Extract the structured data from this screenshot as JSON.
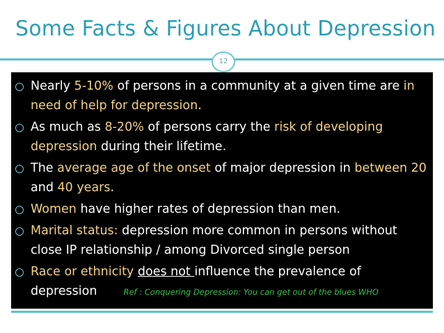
{
  "slide": {
    "title": "Some Facts & Figures About Depression",
    "number": "12"
  },
  "bullets": [
    {
      "segments": [
        {
          "text": "Nearly ",
          "style": "normal"
        },
        {
          "text": "5-10%",
          "style": "highlight"
        },
        {
          "text": " of persons in a community at a given time are ",
          "style": "normal"
        },
        {
          "text": "in need of help for depression",
          "style": "highlight"
        },
        {
          "text": ".",
          "style": "normal"
        }
      ]
    },
    {
      "segments": [
        {
          "text": "As much as ",
          "style": "normal"
        },
        {
          "text": "8-20%",
          "style": "highlight"
        },
        {
          "text": " of persons carry the ",
          "style": "normal"
        },
        {
          "text": "risk of developing depression",
          "style": "highlight"
        },
        {
          "text": " during their lifetime.",
          "style": "normal"
        }
      ]
    },
    {
      "segments": [
        {
          "text": "The ",
          "style": "normal"
        },
        {
          "text": "average age of the onset",
          "style": "highlight"
        },
        {
          "text": " of major depression in ",
          "style": "normal"
        },
        {
          "text": "between 20",
          "style": "highlight"
        },
        {
          "text": " and ",
          "style": "normal"
        },
        {
          "text": "40 years",
          "style": "highlight"
        },
        {
          "text": ".",
          "style": "normal"
        }
      ]
    },
    {
      "segments": [
        {
          "text": "Women",
          "style": "highlight"
        },
        {
          "text": " have higher rates of depression than men.",
          "style": "normal"
        }
      ]
    },
    {
      "segments": [
        {
          "text": "Marital status:",
          "style": "highlight"
        },
        {
          "text": " depression more common in persons without close IP relationship / among Divorced single person",
          "style": "normal"
        }
      ]
    },
    {
      "segments": [
        {
          "text": "Race or ethnicity",
          "style": "highlight"
        },
        {
          "text": " ",
          "style": "normal"
        },
        {
          "text": "does not ",
          "style": "underline"
        },
        {
          "text": "influence the prevalence of depression",
          "style": "normal"
        }
      ],
      "reference": "Ref : Conquering Depression: You can get out of the blues WHO"
    }
  ],
  "colors": {
    "title": "#2b9eb3",
    "highlight": "#f2d283",
    "reference": "#37c24a",
    "rule": "#5bc2d0",
    "panel": "#000000"
  }
}
